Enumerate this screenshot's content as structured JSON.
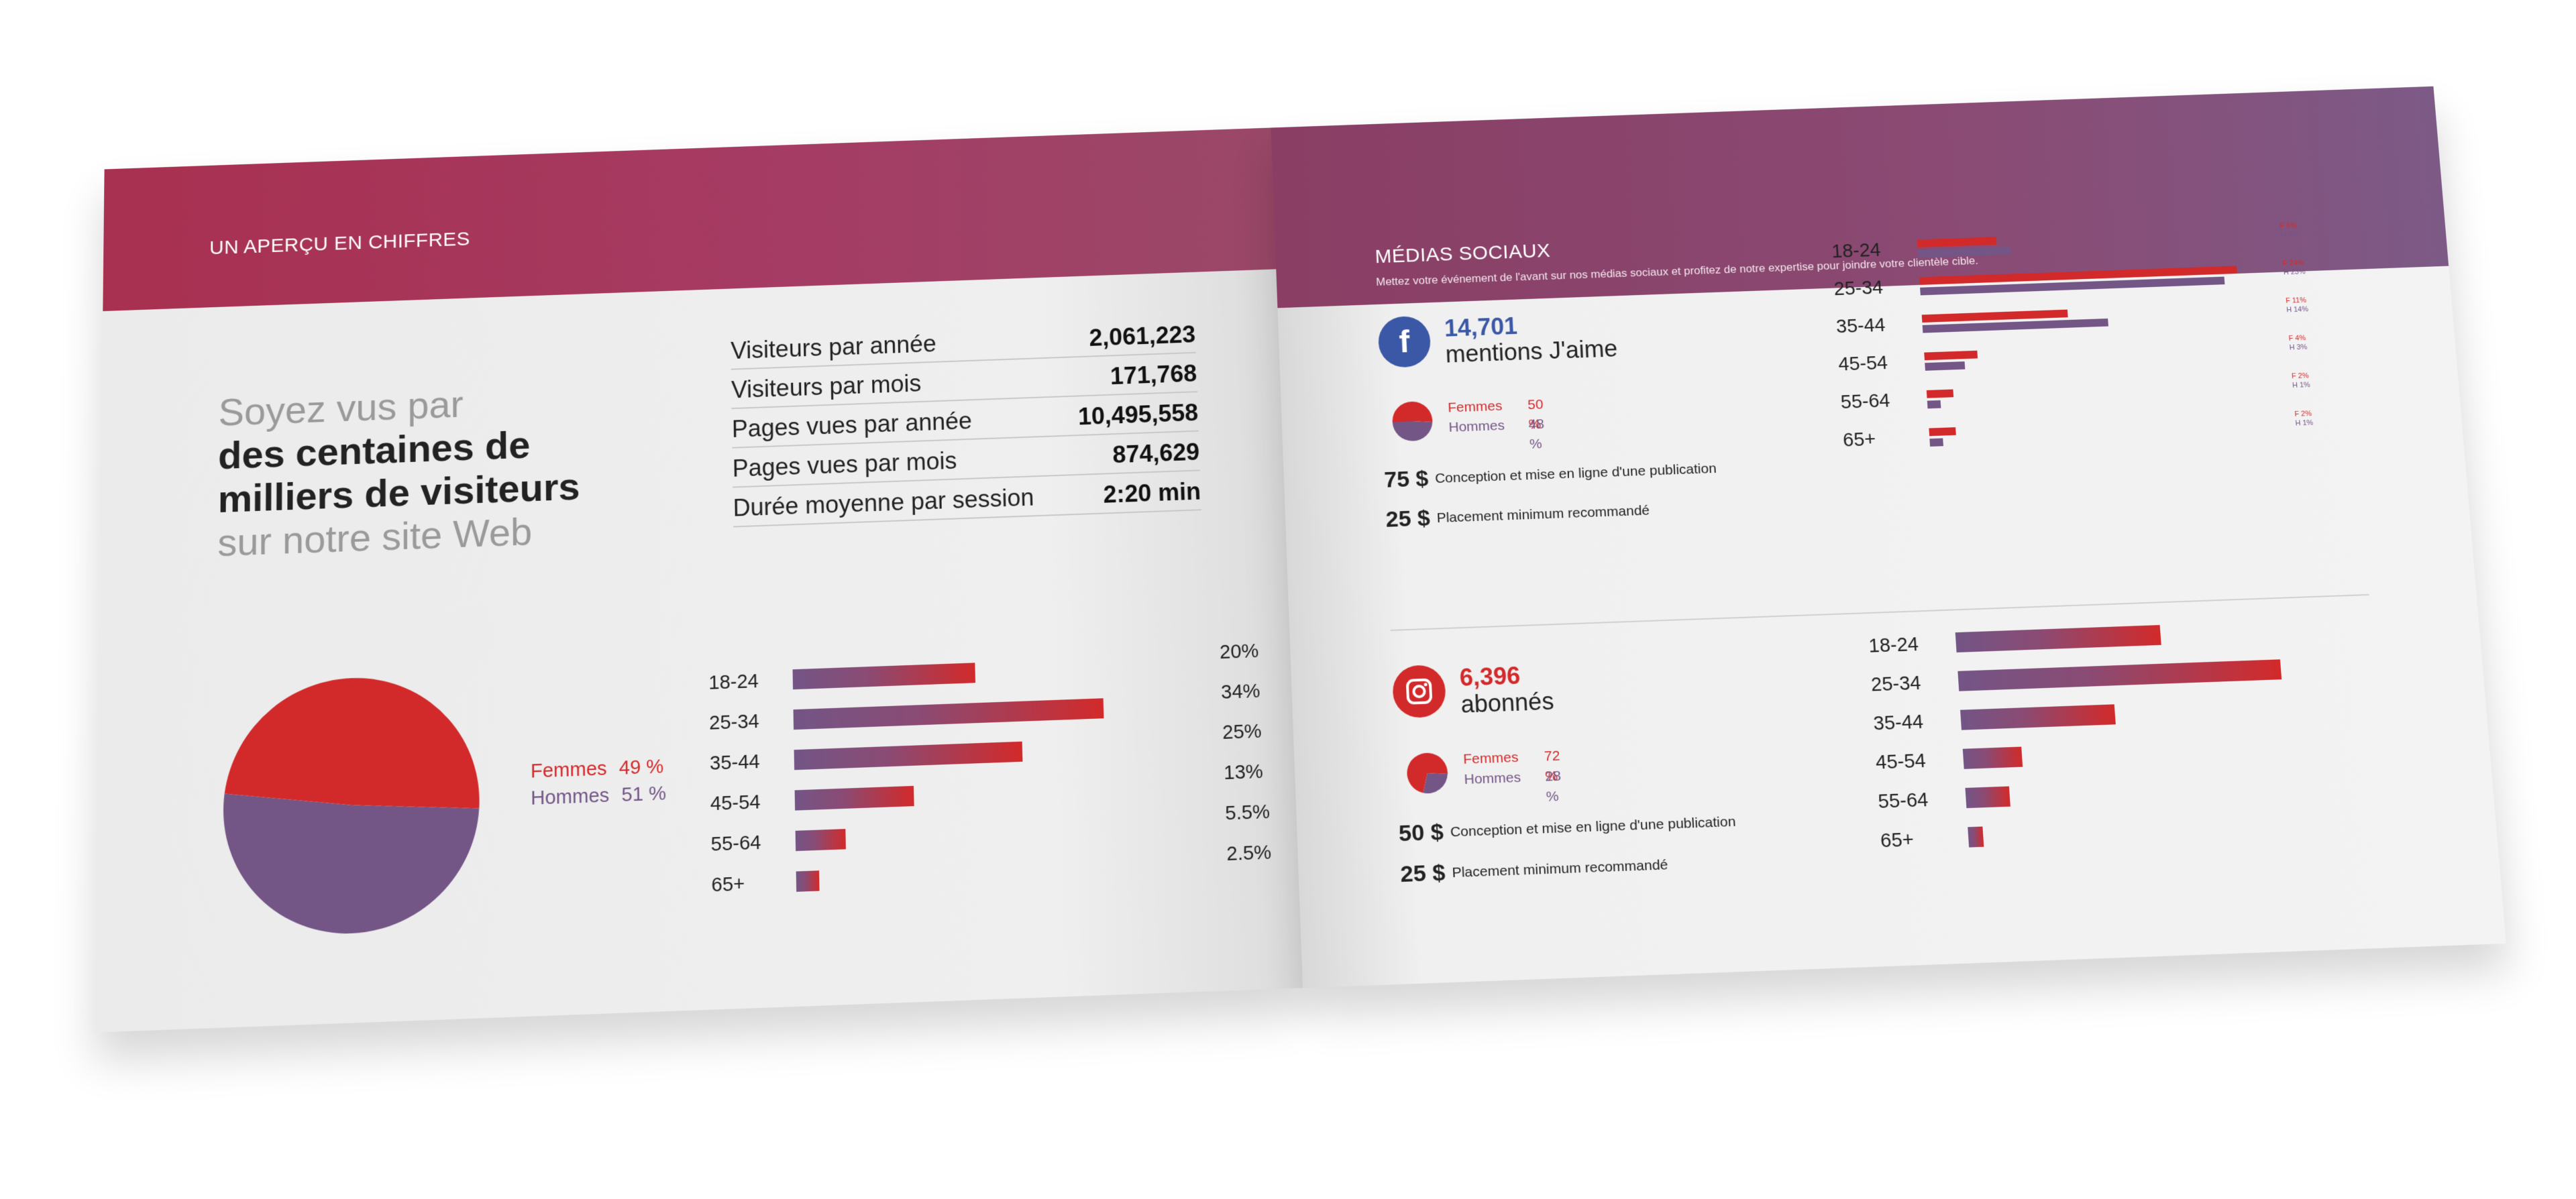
{
  "left_page": {
    "band_title": "UN APERÇU EN CHIFFRES",
    "headline": {
      "line1": "Soyez vus par",
      "line2": "des centaines de",
      "line3": "milliers de visiteurs",
      "line4": "sur notre site Web"
    },
    "stats": [
      {
        "label": "Visiteurs par année",
        "value": "2,061,223"
      },
      {
        "label": "Visiteurs par mois",
        "value": "171,768"
      },
      {
        "label": "Pages vues par année",
        "value": "10,495,558"
      },
      {
        "label": "Pages vues par mois",
        "value": "874,629"
      },
      {
        "label": "Durée moyenne par session",
        "value": "2:20 min"
      }
    ],
    "gender": {
      "femmes_label": "Femmes",
      "femmes_pct": "49 %",
      "hommes_label": "Hommes",
      "hommes_pct": "51 %",
      "femmes_value": 49,
      "hommes_value": 51
    },
    "age": [
      {
        "label": "18-24",
        "pct": "20%",
        "value": 20
      },
      {
        "label": "25-34",
        "pct": "34%",
        "value": 34
      },
      {
        "label": "35-44",
        "pct": "25%",
        "value": 25
      },
      {
        "label": "45-54",
        "pct": "13%",
        "value": 13
      },
      {
        "label": "55-64",
        "pct": "5.5%",
        "value": 5.5
      },
      {
        "label": "65+",
        "pct": "2.5%",
        "value": 2.5
      }
    ]
  },
  "right_page": {
    "band_title": "MÉDIAS SOCIAUX",
    "band_subtitle": "Mettez votre événement de l'avant sur nos médias sociaux et profitez de notre expertise pour joindre votre clientèle cible.",
    "facebook": {
      "icon": "facebook-icon",
      "glyph": "f",
      "count": "14,701",
      "count_label": "mentions J'aime",
      "femmes_label": "Femmes",
      "femmes_pct": "50 %",
      "femmes_value": 50,
      "hommes_label": "Hommes",
      "hommes_pct": "48 %",
      "hommes_value": 48,
      "prices": [
        {
          "amount": "75 $",
          "desc": "Conception et mise en ligne d'une publication"
        },
        {
          "amount": "25 $",
          "desc": "Placement minimum recommandé"
        }
      ],
      "age": [
        {
          "label": "18-24",
          "f": 6,
          "h": 7,
          "f_text": "F 6%",
          "h_text": "H 7%"
        },
        {
          "label": "25-34",
          "f": 24,
          "h": 23,
          "f_text": "F 24%",
          "h_text": "H 23%"
        },
        {
          "label": "35-44",
          "f": 11,
          "h": 14,
          "f_text": "F 11%",
          "h_text": "H 14%"
        },
        {
          "label": "45-54",
          "f": 4,
          "h": 3,
          "f_text": "F 4%",
          "h_text": "H 3%"
        },
        {
          "label": "55-64",
          "f": 2,
          "h": 1,
          "f_text": "F 2%",
          "h_text": "H 1%"
        },
        {
          "label": "65+",
          "f": 2,
          "h": 1,
          "f_text": "F 2%",
          "h_text": "H 1%"
        }
      ]
    },
    "instagram": {
      "icon": "instagram-icon",
      "count": "6,396",
      "count_label": "abonnés",
      "femmes_label": "Femmes",
      "femmes_pct": "72 %",
      "femmes_value": 72,
      "hommes_label": "Hommes",
      "hommes_pct": "28 %",
      "hommes_value": 28,
      "prices": [
        {
          "amount": "50 $",
          "desc": "Conception et mise en ligne d'une publication"
        },
        {
          "amount": "25 $",
          "desc": "Placement minimum recommandé"
        }
      ],
      "age": [
        {
          "label": "18-24",
          "value": 28
        },
        {
          "label": "25-34",
          "value": 44
        },
        {
          "label": "35-44",
          "value": 21
        },
        {
          "label": "45-54",
          "value": 8
        },
        {
          "label": "55-64",
          "value": 6
        },
        {
          "label": "65+",
          "value": 2
        }
      ]
    }
  },
  "colors": {
    "femmes": "#d22a2a",
    "hommes": "#735586",
    "facebook": "#3b58a6",
    "instagram": "#d22a2a"
  }
}
